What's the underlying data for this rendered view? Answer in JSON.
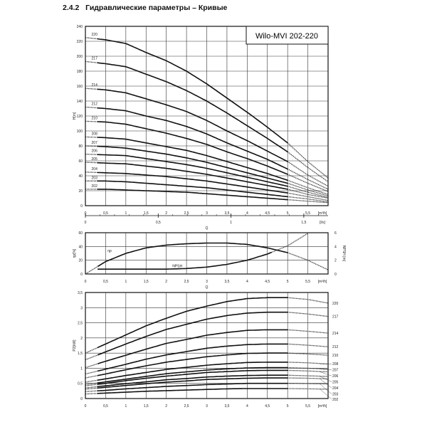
{
  "heading": {
    "number": "2.4.2",
    "text": "Гидравлические параметры – Кривые"
  },
  "chart_data": [
    {
      "type": "line",
      "title": "Wilo-MVI 202-220",
      "ylabel": "H[m]",
      "xlabel": "Q",
      "x_unit": "[m³/h]",
      "secondary_x": {
        "label": "Q",
        "unit": "[l/s]",
        "ticks": [
          "0",
          "0,5",
          "1",
          "1,5"
        ],
        "values": [
          0,
          0.5,
          1,
          1.5
        ]
      },
      "xlim": [
        0,
        6
      ],
      "ylim": [
        0,
        240
      ],
      "grid": true,
      "x_ticks": [
        "0",
        "0,5",
        "1",
        "1,5",
        "2",
        "2,5",
        "3",
        "3,5",
        "4",
        "4,5",
        "5",
        "5,5"
      ],
      "y_ticks": [
        "0",
        "20",
        "40",
        "60",
        "80",
        "100",
        "120",
        "140",
        "160",
        "180",
        "200",
        "220",
        "240"
      ],
      "x": [
        0,
        0.5,
        1,
        1.5,
        2,
        2.5,
        3,
        3.5,
        4,
        4.5,
        5,
        5.5,
        6
      ],
      "solid_range": [
        0.3,
        5
      ],
      "series": [
        {
          "name": "220",
          "values": [
            225,
            222,
            217,
            205,
            194,
            180,
            163,
            144,
            125,
            105,
            84,
            59,
            37
          ]
        },
        {
          "name": "217",
          "values": [
            193,
            190,
            186,
            176,
            166,
            154,
            140,
            124,
            107,
            90,
            72,
            51,
            32
          ]
        },
        {
          "name": "214",
          "values": [
            157,
            155,
            151,
            143,
            135,
            126,
            114,
            100,
            87,
            73,
            59,
            41,
            26
          ]
        },
        {
          "name": "212",
          "values": [
            132,
            130,
            127,
            120,
            114,
            106,
            96,
            84,
            73,
            62,
            49,
            35,
            22
          ]
        },
        {
          "name": "210",
          "values": [
            113,
            112,
            109,
            103,
            97,
            90,
            82,
            72,
            63,
            53,
            42,
            30,
            19
          ]
        },
        {
          "name": "208",
          "values": [
            92,
            91,
            89,
            84,
            79,
            74,
            67,
            59,
            51,
            43,
            34,
            24,
            15
          ]
        },
        {
          "name": "207",
          "values": [
            80,
            79,
            77,
            73,
            69,
            64,
            58,
            51,
            44,
            37,
            30,
            21,
            13
          ]
        },
        {
          "name": "206",
          "values": [
            69,
            68,
            67,
            63,
            59,
            55,
            50,
            44,
            38,
            32,
            26,
            18,
            11
          ]
        },
        {
          "name": "205",
          "values": [
            58,
            57,
            56,
            53,
            50,
            46,
            42,
            37,
            32,
            27,
            22,
            15,
            10
          ]
        },
        {
          "name": "204",
          "values": [
            45,
            44,
            43,
            41,
            39,
            36,
            33,
            29,
            25,
            21,
            17,
            12,
            7
          ]
        },
        {
          "name": "203",
          "values": [
            33,
            33,
            32,
            30,
            28,
            26,
            24,
            21,
            18,
            15,
            12,
            9,
            5
          ]
        },
        {
          "name": "202",
          "values": [
            22,
            22,
            21,
            20,
            19,
            18,
            16,
            14,
            12,
            10,
            8,
            6,
            4
          ]
        }
      ]
    },
    {
      "type": "line",
      "ylabel": "ηp[%]",
      "ylabel_right": "NPSH [m]",
      "xlabel": "Q",
      "x_unit": "[m³/h]",
      "xlim": [
        0,
        6
      ],
      "ylim": [
        0,
        60
      ],
      "ylim_right": [
        0,
        6
      ],
      "grid": true,
      "x_ticks": [
        "0",
        "0,5",
        "1",
        "1,5",
        "2",
        "2,5",
        "3",
        "3,5",
        "4",
        "4,5",
        "5",
        "5,5"
      ],
      "y_ticks": [
        "0",
        "20",
        "40",
        "60"
      ],
      "y_ticks_right": [
        "0",
        "2",
        "4",
        "6"
      ],
      "series": [
        {
          "name": "ηp",
          "axis": "left",
          "x": [
            0,
            0.5,
            1,
            1.5,
            2,
            2.5,
            3,
            3.5,
            4,
            4.5,
            5,
            5.5,
            6
          ],
          "values": [
            0,
            18,
            30,
            38,
            42,
            44,
            45,
            45,
            43,
            38,
            31,
            20,
            6
          ],
          "solid_range": [
            0.3,
            5
          ]
        },
        {
          "name": "NPSH",
          "axis": "right",
          "x": [
            0.3,
            0.5,
            1,
            1.5,
            2,
            2.5,
            3,
            3.5,
            4,
            4.5,
            5,
            5.5
          ],
          "values": [
            0.7,
            0.7,
            0.7,
            0.7,
            0.7,
            0.8,
            1.0,
            1.4,
            2.0,
            2.9,
            4.1,
            5.9
          ],
          "solid_range": [
            0.3,
            4.6
          ]
        }
      ]
    },
    {
      "type": "line",
      "ylabel": "P2[kW]",
      "x_unit": "[m³/h]",
      "xlim": [
        0,
        6
      ],
      "ylim": [
        0,
        3.5
      ],
      "grid": true,
      "x_ticks": [
        "0",
        "0,5",
        "1",
        "1,5",
        "2",
        "2,5",
        "3",
        "3,5",
        "4",
        "4,5",
        "5",
        "5,5"
      ],
      "y_ticks": [
        "0",
        "0,5",
        "1",
        "1,5",
        "2",
        "2,5",
        "3",
        "3,5"
      ],
      "x": [
        0,
        0.5,
        1,
        1.5,
        2,
        2.5,
        3,
        3.5,
        4,
        4.5,
        5,
        5.5,
        6
      ],
      "solid_range": [
        0.3,
        5
      ],
      "series": [
        {
          "name": "220",
          "values": [
            1.5,
            1.8,
            2.1,
            2.4,
            2.65,
            2.88,
            3.05,
            3.2,
            3.3,
            3.33,
            3.33,
            3.27,
            3.15
          ]
        },
        {
          "name": "217",
          "values": [
            1.28,
            1.54,
            1.8,
            2.05,
            2.28,
            2.45,
            2.62,
            2.74,
            2.82,
            2.85,
            2.85,
            2.79,
            2.71
          ]
        },
        {
          "name": "214",
          "values": [
            1.02,
            1.23,
            1.43,
            1.63,
            1.82,
            1.95,
            2.09,
            2.18,
            2.25,
            2.27,
            2.27,
            2.22,
            2.16
          ]
        },
        {
          "name": "212",
          "values": [
            0.81,
            0.97,
            1.13,
            1.3,
            1.44,
            1.55,
            1.66,
            1.73,
            1.78,
            1.8,
            1.8,
            1.76,
            1.71
          ]
        },
        {
          "name": "210",
          "values": [
            0.68,
            0.81,
            0.95,
            1.08,
            1.2,
            1.29,
            1.38,
            1.44,
            1.49,
            1.5,
            1.5,
            1.47,
            1.43
          ]
        },
        {
          "name": "208",
          "values": [
            0.54,
            0.65,
            0.76,
            0.86,
            0.96,
            1.03,
            1.1,
            1.15,
            1.19,
            1.2,
            1.2,
            1.18,
            1.14
          ]
        },
        {
          "name": "207",
          "values": [
            0.46,
            0.55,
            0.64,
            0.73,
            0.82,
            0.88,
            0.94,
            0.98,
            1.01,
            1.02,
            1.02,
            1.0,
            0.97
          ]
        },
        {
          "name": "206",
          "values": [
            0.42,
            0.5,
            0.59,
            0.67,
            0.74,
            0.8,
            0.86,
            0.89,
            0.92,
            0.93,
            0.93,
            0.91,
            0.88
          ]
        },
        {
          "name": "205",
          "values": [
            0.35,
            0.42,
            0.49,
            0.55,
            0.62,
            0.66,
            0.71,
            0.74,
            0.76,
            0.77,
            0.77,
            0.75,
            0.73
          ]
        },
        {
          "name": "204",
          "values": [
            0.31,
            0.37,
            0.43,
            0.49,
            0.54,
            0.58,
            0.63,
            0.65,
            0.67,
            0.68,
            0.68,
            0.67,
            0.65
          ]
        },
        {
          "name": "203",
          "values": [
            0.23,
            0.27,
            0.32,
            0.36,
            0.4,
            0.43,
            0.46,
            0.48,
            0.5,
            0.5,
            0.5,
            0.49,
            0.48
          ]
        },
        {
          "name": "202",
          "values": [
            0.15,
            0.18,
            0.21,
            0.24,
            0.26,
            0.28,
            0.3,
            0.32,
            0.33,
            0.33,
            0.33,
            0.32,
            0.31
          ]
        }
      ]
    }
  ]
}
